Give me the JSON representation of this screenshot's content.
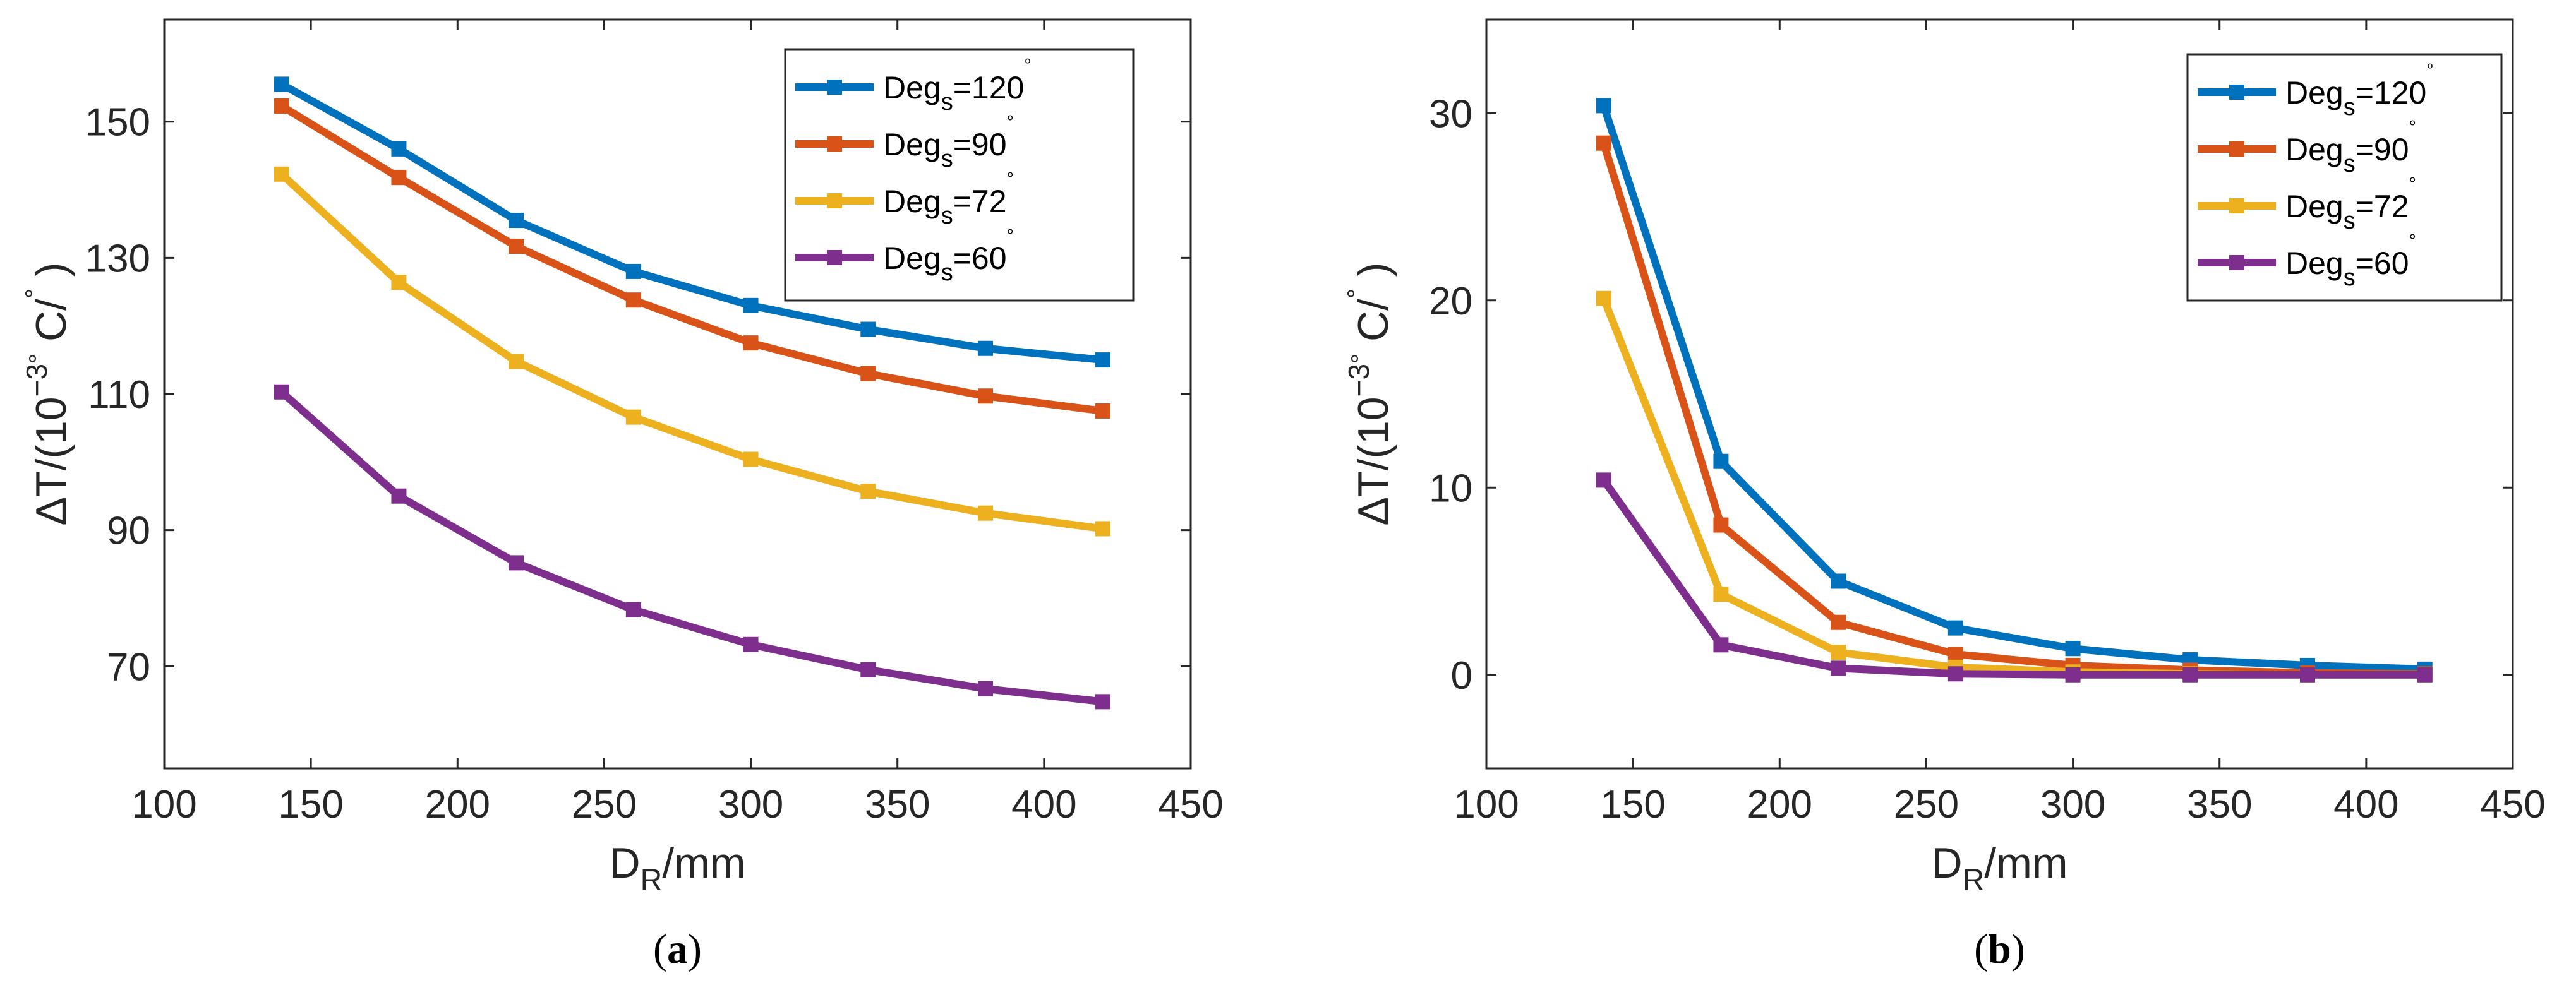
{
  "chart_data": [
    {
      "type": "line",
      "panel_label": "a",
      "xlabel": {
        "base": "D",
        "sub": "R",
        "rest": "/mm"
      },
      "ylabel": {
        "parts": [
          "ΔT/(10",
          "−3",
          "°",
          " C/",
          "°",
          " )"
        ]
      },
      "xlim": [
        100,
        450
      ],
      "ylim": [
        55,
        165
      ],
      "xticks": [
        100,
        150,
        200,
        250,
        300,
        350,
        400,
        450
      ],
      "yticks": [
        70,
        90,
        110,
        130,
        150
      ],
      "grid": false,
      "legend_position": "top-right",
      "x": [
        140,
        180,
        220,
        260,
        300,
        340,
        380,
        420
      ],
      "series": [
        {
          "name": "Degs=120°",
          "legend": {
            "base": "Deg",
            "sub": "s",
            "value": "=120",
            "sup": "°"
          },
          "color": "#0072BD",
          "values": [
            155.5,
            146.0,
            135.5,
            128.0,
            123.0,
            119.5,
            116.7,
            115.0
          ]
        },
        {
          "name": "Degs=90°",
          "legend": {
            "base": "Deg",
            "sub": "s",
            "value": "=90",
            "sup": "°"
          },
          "color": "#D95319",
          "values": [
            152.3,
            141.8,
            131.7,
            123.8,
            117.5,
            113.0,
            109.7,
            107.5
          ]
        },
        {
          "name": "Degs=72°",
          "legend": {
            "base": "Deg",
            "sub": "s",
            "value": "=72",
            "sup": "°"
          },
          "color": "#EDB120",
          "values": [
            142.3,
            126.4,
            114.8,
            106.6,
            100.4,
            95.7,
            92.5,
            90.2
          ]
        },
        {
          "name": "Degs=60°",
          "legend": {
            "base": "Deg",
            "sub": "s",
            "value": "=60",
            "sup": "°"
          },
          "color": "#7E2F8E",
          "values": [
            110.3,
            95.0,
            85.2,
            78.3,
            73.2,
            69.5,
            66.7,
            64.8
          ]
        }
      ]
    },
    {
      "type": "line",
      "panel_label": "b",
      "xlabel": {
        "base": "D",
        "sub": "R",
        "rest": "/mm"
      },
      "ylabel": {
        "parts": [
          "ΔT/(10",
          "−3",
          "°",
          " C/",
          "°",
          " )"
        ]
      },
      "xlim": [
        100,
        450
      ],
      "ylim": [
        -5,
        35
      ],
      "xticks": [
        100,
        150,
        200,
        250,
        300,
        350,
        400,
        450
      ],
      "yticks": [
        0,
        10,
        20,
        30
      ],
      "grid": false,
      "legend_position": "top-right",
      "x": [
        140,
        180,
        220,
        260,
        300,
        340,
        380,
        420
      ],
      "series": [
        {
          "name": "Degs=120°",
          "legend": {
            "base": "Deg",
            "sub": "s",
            "value": "=120",
            "sup": "°"
          },
          "color": "#0072BD",
          "values": [
            30.4,
            11.4,
            5.0,
            2.5,
            1.4,
            0.8,
            0.5,
            0.3
          ]
        },
        {
          "name": "Degs=90°",
          "legend": {
            "base": "Deg",
            "sub": "s",
            "value": "=90",
            "sup": "°"
          },
          "color": "#D95319",
          "values": [
            28.4,
            8.0,
            2.8,
            1.1,
            0.5,
            0.25,
            0.1,
            0.05
          ]
        },
        {
          "name": "Degs=72°",
          "legend": {
            "base": "Deg",
            "sub": "s",
            "value": "=72",
            "sup": "°"
          },
          "color": "#EDB120",
          "values": [
            20.1,
            4.3,
            1.2,
            0.4,
            0.15,
            0.05,
            0.0,
            0.0
          ]
        },
        {
          "name": "Degs=60°",
          "legend": {
            "base": "Deg",
            "sub": "s",
            "value": "=60",
            "sup": "°"
          },
          "color": "#7E2F8E",
          "values": [
            10.4,
            1.6,
            0.35,
            0.05,
            0.0,
            0.0,
            0.0,
            0.0
          ]
        }
      ]
    }
  ]
}
